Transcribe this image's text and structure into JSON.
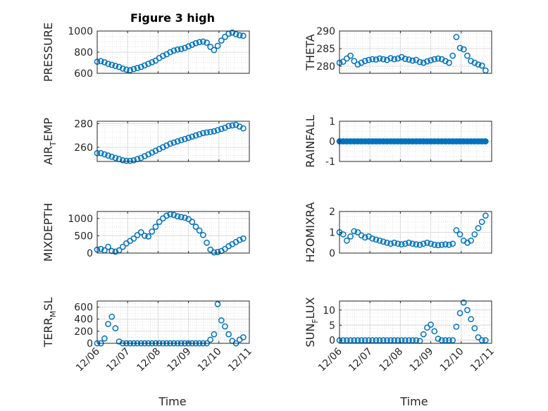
{
  "chart_data": {
    "type": "scatter",
    "title": "Figure 3 high",
    "xlabel": "Time",
    "x_ticks": [
      "12/06",
      "12/07",
      "12/08",
      "12/09",
      "12/10",
      "12/11"
    ],
    "x_range": [
      0,
      5
    ],
    "marker_color": "#0072BD",
    "grid": true,
    "panels": [
      {
        "id": "pressure",
        "ylabel_main": "PRESSURE",
        "ylabel_sub": "",
        "ylabel_tail": "",
        "ylim": [
          600,
          1000
        ],
        "yticks": [
          600,
          800,
          1000
        ],
        "x": [
          0.0,
          0.12,
          0.24,
          0.36,
          0.48,
          0.6,
          0.72,
          0.84,
          0.96,
          1.08,
          1.2,
          1.32,
          1.44,
          1.56,
          1.68,
          1.8,
          1.92,
          2.04,
          2.16,
          2.28,
          2.4,
          2.52,
          2.64,
          2.76,
          2.88,
          3.0,
          3.12,
          3.24,
          3.36,
          3.48,
          3.6,
          3.72,
          3.84,
          3.96,
          4.08,
          4.2,
          4.32,
          4.44,
          4.56,
          4.68,
          4.8
        ],
        "y": [
          710,
          715,
          705,
          690,
          680,
          670,
          660,
          645,
          635,
          630,
          640,
          650,
          660,
          675,
          690,
          705,
          720,
          745,
          765,
          780,
          800,
          815,
          825,
          830,
          840,
          855,
          870,
          885,
          895,
          900,
          890,
          850,
          820,
          860,
          910,
          945,
          975,
          985,
          970,
          960,
          955
        ]
      },
      {
        "id": "theta",
        "ylabel_main": "THETA",
        "ylabel_sub": "",
        "ylabel_tail": "",
        "ylim": [
          278,
          290
        ],
        "yticks": [
          280,
          285,
          290
        ],
        "x": [
          0.0,
          0.12,
          0.24,
          0.36,
          0.48,
          0.6,
          0.72,
          0.84,
          0.96,
          1.08,
          1.2,
          1.32,
          1.44,
          1.56,
          1.68,
          1.8,
          1.92,
          2.04,
          2.16,
          2.28,
          2.4,
          2.52,
          2.64,
          2.76,
          2.88,
          3.0,
          3.12,
          3.24,
          3.36,
          3.48,
          3.6,
          3.72,
          3.84,
          3.96,
          4.08,
          4.2,
          4.32,
          4.44,
          4.56,
          4.68,
          4.8
        ],
        "y": [
          281.0,
          281.3,
          282.2,
          283.0,
          281.5,
          280.5,
          281.0,
          281.5,
          281.8,
          282.0,
          281.9,
          282.2,
          282.0,
          281.8,
          282.3,
          282.0,
          282.2,
          282.6,
          282.1,
          281.9,
          281.6,
          281.8,
          281.2,
          281.0,
          281.4,
          281.7,
          282.0,
          282.2,
          282.0,
          281.5,
          281.0,
          283.0,
          288.3,
          285.2,
          284.8,
          283.0,
          281.5,
          281.0,
          280.5,
          280.2,
          278.8
        ]
      },
      {
        "id": "air_temp",
        "ylabel_main": "AIR",
        "ylabel_sub": "T",
        "ylabel_tail": "EMP",
        "ylim": [
          248,
          282
        ],
        "yticks": [
          260,
          280
        ],
        "x": [
          0.0,
          0.12,
          0.24,
          0.36,
          0.48,
          0.6,
          0.72,
          0.84,
          0.96,
          1.08,
          1.2,
          1.32,
          1.44,
          1.56,
          1.68,
          1.8,
          1.92,
          2.04,
          2.16,
          2.28,
          2.4,
          2.52,
          2.64,
          2.76,
          2.88,
          3.0,
          3.12,
          3.24,
          3.36,
          3.48,
          3.6,
          3.72,
          3.84,
          3.96,
          4.08,
          4.2,
          4.32,
          4.44,
          4.56,
          4.68,
          4.8
        ],
        "y": [
          255,
          255,
          254,
          253,
          252,
          251,
          250,
          249,
          248.5,
          248.5,
          249,
          250,
          251,
          252.5,
          254,
          255.5,
          257,
          258.5,
          260,
          261.5,
          263,
          264,
          265,
          266,
          267,
          268,
          269,
          270,
          271,
          272,
          272.5,
          273,
          273.5,
          274.5,
          275.5,
          276.5,
          278,
          278.5,
          279,
          277.5,
          276
        ]
      },
      {
        "id": "rainfall",
        "ylabel_main": "RAINFALL",
        "ylabel_sub": "",
        "ylabel_tail": "",
        "ylim": [
          -1,
          1
        ],
        "yticks": [
          -1,
          0,
          1
        ],
        "x": [
          0.0,
          0.12,
          0.24,
          0.36,
          0.48,
          0.6,
          0.72,
          0.84,
          0.96,
          1.08,
          1.2,
          1.32,
          1.44,
          1.56,
          1.68,
          1.8,
          1.92,
          2.04,
          2.16,
          2.28,
          2.4,
          2.52,
          2.64,
          2.76,
          2.88,
          3.0,
          3.12,
          3.24,
          3.36,
          3.48,
          3.6,
          3.72,
          3.84,
          3.96,
          4.08,
          4.2,
          4.32,
          4.44,
          4.56,
          4.68,
          4.8
        ],
        "y": [
          0,
          0,
          0,
          0,
          0,
          0,
          0,
          0,
          0,
          0,
          0,
          0,
          0,
          0,
          0,
          0,
          0,
          0,
          0,
          0,
          0,
          0,
          0,
          0,
          0,
          0,
          0,
          0,
          0,
          0,
          0,
          0,
          0,
          0,
          0,
          0,
          0,
          0,
          0,
          0,
          0
        ]
      },
      {
        "id": "mixdepth",
        "ylabel_main": "MIXDEPTH",
        "ylabel_sub": "",
        "ylabel_tail": "",
        "ylim": [
          0,
          1200
        ],
        "yticks": [
          0,
          500,
          1000
        ],
        "x": [
          0.0,
          0.12,
          0.24,
          0.36,
          0.48,
          0.6,
          0.72,
          0.84,
          0.96,
          1.08,
          1.2,
          1.32,
          1.44,
          1.56,
          1.68,
          1.8,
          1.92,
          2.04,
          2.16,
          2.28,
          2.4,
          2.52,
          2.64,
          2.76,
          2.88,
          3.0,
          3.12,
          3.24,
          3.36,
          3.48,
          3.6,
          3.72,
          3.84,
          3.96,
          4.08,
          4.2,
          4.32,
          4.44,
          4.56,
          4.68,
          4.8
        ],
        "y": [
          100,
          120,
          80,
          180,
          60,
          40,
          80,
          180,
          280,
          350,
          420,
          520,
          600,
          500,
          480,
          620,
          760,
          900,
          1000,
          1080,
          1120,
          1100,
          1060,
          1040,
          1020,
          980,
          900,
          760,
          650,
          520,
          300,
          100,
          20,
          30,
          60,
          120,
          200,
          260,
          320,
          380,
          420
        ]
      },
      {
        "id": "h2omixra",
        "ylabel_main": "H2OMIXRA",
        "ylabel_sub": "",
        "ylabel_tail": "",
        "ylim": [
          0,
          2
        ],
        "yticks": [
          0,
          1,
          2
        ],
        "x": [
          0.0,
          0.12,
          0.24,
          0.36,
          0.48,
          0.6,
          0.72,
          0.84,
          0.96,
          1.08,
          1.2,
          1.32,
          1.44,
          1.56,
          1.68,
          1.8,
          1.92,
          2.04,
          2.16,
          2.28,
          2.4,
          2.52,
          2.64,
          2.76,
          2.88,
          3.0,
          3.12,
          3.24,
          3.36,
          3.48,
          3.6,
          3.72,
          3.84,
          3.96,
          4.08,
          4.2,
          4.32,
          4.44,
          4.56,
          4.68,
          4.8
        ],
        "y": [
          1.0,
          0.9,
          0.6,
          0.8,
          1.05,
          1.0,
          0.85,
          0.75,
          0.8,
          0.7,
          0.65,
          0.6,
          0.55,
          0.5,
          0.45,
          0.5,
          0.45,
          0.42,
          0.45,
          0.5,
          0.45,
          0.42,
          0.4,
          0.45,
          0.5,
          0.45,
          0.4,
          0.38,
          0.4,
          0.42,
          0.4,
          0.45,
          1.1,
          0.9,
          0.6,
          0.5,
          0.6,
          0.9,
          1.2,
          1.5,
          1.8
        ]
      },
      {
        "id": "terr_msl",
        "ylabel_main": "TERR",
        "ylabel_sub": "M",
        "ylabel_tail": "SL",
        "ylim": [
          0,
          700
        ],
        "yticks": [
          0,
          200,
          400,
          600
        ],
        "x": [
          0.0,
          0.12,
          0.24,
          0.36,
          0.48,
          0.6,
          0.72,
          0.84,
          0.96,
          1.08,
          1.2,
          1.32,
          1.44,
          1.56,
          1.68,
          1.8,
          1.92,
          2.04,
          2.16,
          2.28,
          2.4,
          2.52,
          2.64,
          2.76,
          2.88,
          3.0,
          3.12,
          3.24,
          3.36,
          3.48,
          3.6,
          3.72,
          3.84,
          3.96,
          4.08,
          4.2,
          4.32,
          4.44,
          4.56,
          4.68,
          4.8
        ],
        "y": [
          0,
          0,
          80,
          320,
          440,
          250,
          30,
          0,
          0,
          0,
          0,
          0,
          0,
          0,
          0,
          0,
          0,
          0,
          0,
          0,
          0,
          0,
          0,
          0,
          0,
          0,
          0,
          0,
          0,
          0,
          0,
          60,
          150,
          650,
          380,
          280,
          150,
          40,
          0,
          60,
          100
        ]
      },
      {
        "id": "sun_flux",
        "ylabel_main": "SUN",
        "ylabel_sub": "F",
        "ylabel_tail": "LUX",
        "ylim": [
          -1,
          13
        ],
        "yticks": [
          0,
          5,
          10
        ],
        "x": [
          0.0,
          0.12,
          0.24,
          0.36,
          0.48,
          0.6,
          0.72,
          0.84,
          0.96,
          1.08,
          1.2,
          1.32,
          1.44,
          1.56,
          1.68,
          1.8,
          1.92,
          2.04,
          2.16,
          2.28,
          2.4,
          2.52,
          2.64,
          2.76,
          2.88,
          3.0,
          3.12,
          3.24,
          3.36,
          3.48,
          3.6,
          3.72,
          3.84,
          3.96,
          4.08,
          4.2,
          4.32,
          4.44,
          4.56,
          4.68,
          4.8
        ],
        "y": [
          0,
          0,
          0,
          0,
          0,
          0,
          0,
          0,
          0,
          0,
          0,
          0,
          0,
          0,
          0,
          0,
          0,
          0,
          0,
          0,
          0,
          0,
          -0.2,
          2.0,
          4.2,
          5.2,
          3.0,
          0.5,
          0,
          0,
          0,
          0,
          4.5,
          9.0,
          12.5,
          10.0,
          7.0,
          4.0,
          1.0,
          0,
          0
        ]
      }
    ]
  }
}
